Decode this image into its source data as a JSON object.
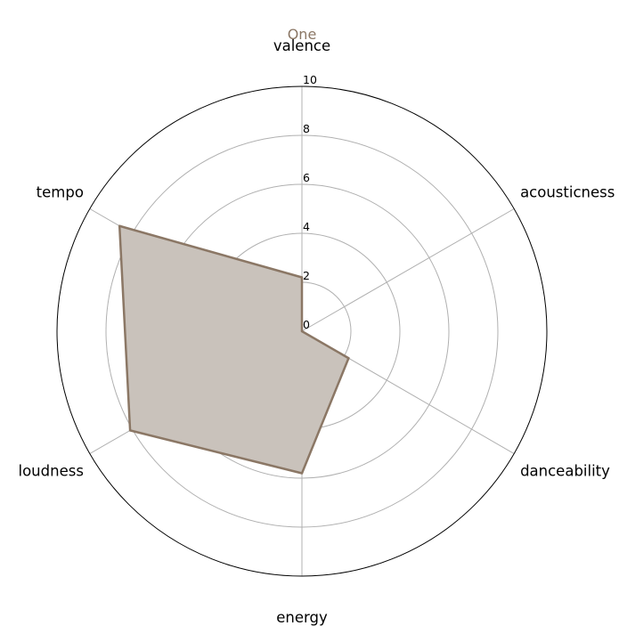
{
  "chart_data": {
    "type": "radar",
    "title": "One",
    "axes": [
      "valence",
      "acousticness",
      "danceability",
      "energy",
      "loudness",
      "tempo"
    ],
    "rlim": [
      0,
      10
    ],
    "rticks": [
      0,
      2,
      4,
      6,
      8,
      10
    ],
    "rtick_labels": [
      "0",
      "2",
      "4",
      "6",
      "8",
      "10"
    ],
    "grid": true,
    "series": [
      {
        "values": [
          2.2,
          0.0,
          2.2,
          5.8,
          8.1,
          8.6
        ]
      }
    ]
  },
  "colors": {
    "series_line": "#8b7765",
    "series_fill": "#c9c2bb",
    "title": "#8b7765",
    "grid": "#b0b0b0",
    "frame": "#000000"
  }
}
